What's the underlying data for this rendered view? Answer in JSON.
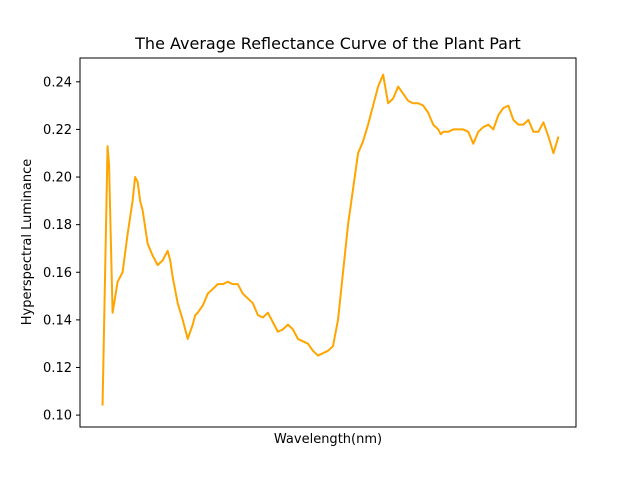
{
  "chart_data": {
    "type": "line",
    "title": "The Average Reflectance Curve of the Plant Part",
    "xlabel": "Wavelength(nm)",
    "ylabel": "Hyperspectral Luminance",
    "ylim": [
      0.095,
      0.25
    ],
    "xlim": [
      -4.5,
      94.5
    ],
    "yticks": [
      0.1,
      0.12,
      0.14,
      0.16,
      0.18,
      0.2,
      0.22,
      0.24
    ],
    "ytick_labels": [
      "0.10",
      "0.12",
      "0.14",
      "0.16",
      "0.18",
      "0.20",
      "0.22",
      "0.24"
    ],
    "x_ticks_shown": false,
    "grid": false,
    "legend": "none",
    "series": [
      {
        "color": "#FFA500",
        "x": [
          0,
          1,
          1.3,
          2,
          2.4,
          3,
          4,
          5,
          6,
          6.5,
          7,
          7.5,
          8,
          9,
          10,
          11,
          11.5,
          12,
          13,
          13.5,
          14,
          15,
          16,
          17,
          18,
          18.5,
          19,
          20,
          21,
          22,
          23,
          24,
          25,
          26,
          27,
          28,
          29,
          30,
          31,
          32,
          33,
          34,
          35,
          36,
          37,
          38,
          39,
          40,
          41,
          42,
          43,
          44,
          45,
          46,
          47,
          48,
          49,
          50,
          51,
          52,
          53,
          54,
          55,
          56,
          57,
          58,
          59,
          60,
          61,
          62,
          63,
          64,
          65,
          66,
          67,
          67.5,
          68,
          69,
          70,
          71,
          72,
          73,
          74,
          75,
          76,
          77,
          78,
          79,
          80,
          81,
          82,
          83,
          84,
          85,
          86,
          87,
          88,
          89,
          90,
          91
        ],
        "y": [
          0.104,
          0.213,
          0.205,
          0.143,
          0.148,
          0.156,
          0.16,
          0.176,
          0.19,
          0.2,
          0.198,
          0.19,
          0.186,
          0.172,
          0.167,
          0.163,
          0.164,
          0.165,
          0.169,
          0.165,
          0.158,
          0.147,
          0.14,
          0.132,
          0.138,
          0.142,
          0.143,
          0.146,
          0.151,
          0.153,
          0.155,
          0.155,
          0.156,
          0.155,
          0.155,
          0.151,
          0.149,
          0.147,
          0.142,
          0.141,
          0.143,
          0.139,
          0.135,
          0.136,
          0.138,
          0.136,
          0.132,
          0.131,
          0.13,
          0.127,
          0.125,
          0.126,
          0.127,
          0.129,
          0.14,
          0.16,
          0.18,
          0.195,
          0.21,
          0.215,
          0.222,
          0.23,
          0.238,
          0.243,
          0.231,
          0.233,
          0.238,
          0.235,
          0.232,
          0.231,
          0.231,
          0.23,
          0.227,
          0.222,
          0.22,
          0.218,
          0.219,
          0.219,
          0.22,
          0.22,
          0.22,
          0.219,
          0.214,
          0.219,
          0.221,
          0.222,
          0.22,
          0.226,
          0.229,
          0.23,
          0.224,
          0.222,
          0.222,
          0.224,
          0.219,
          0.219,
          0.223,
          0.217,
          0.21,
          0.217
        ]
      }
    ]
  }
}
